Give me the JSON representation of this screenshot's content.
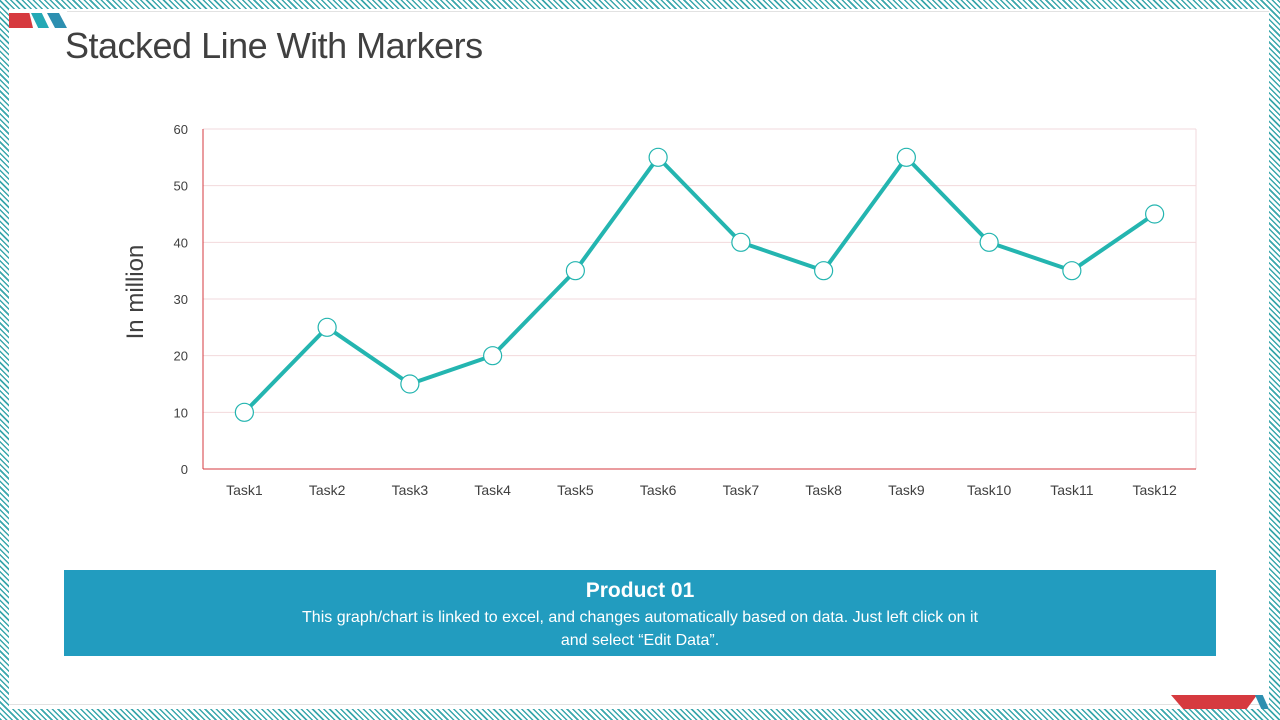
{
  "slide": {
    "title": "Stacked Line With Markers",
    "colors": {
      "accent_teal": "#24b5b0",
      "banner_blue": "#229cbf",
      "accent_red": "#d63a3f"
    }
  },
  "chart_data": {
    "type": "line",
    "title": "",
    "ylabel": "In million",
    "xlabel": "",
    "categories": [
      "Task1",
      "Task2",
      "Task3",
      "Task4",
      "Task5",
      "Task6",
      "Task7",
      "Task8",
      "Task9",
      "Task10",
      "Task11",
      "Task12"
    ],
    "series": [
      {
        "values": [
          10,
          25,
          15,
          20,
          35,
          55,
          40,
          35,
          55,
          40,
          35,
          45
        ]
      }
    ],
    "ylim": [
      0,
      60
    ],
    "yticks": [
      0,
      10,
      20,
      30,
      40,
      50,
      60
    ],
    "grid": true,
    "markers": true
  },
  "banner": {
    "title": "Product 01",
    "body": "This graph/chart is linked to excel, and changes automatically based on data. Just left click on it and select “Edit Data”."
  }
}
